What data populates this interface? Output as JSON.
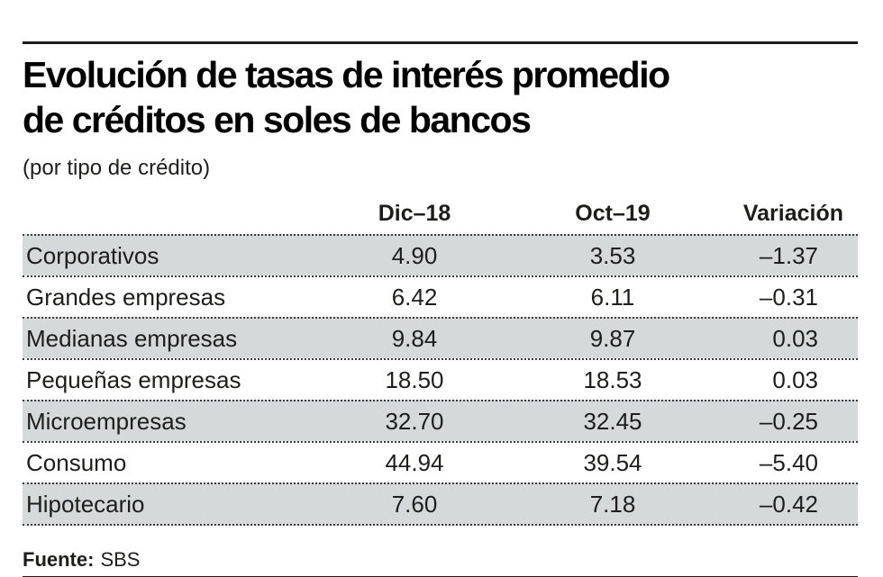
{
  "header": {
    "title_line1": "Evolución de tasas de interés promedio",
    "title_line2": "de créditos en soles de bancos",
    "subtitle": "(por tipo de crédito)"
  },
  "table": {
    "col_dic18": "Dic–18",
    "col_oct19": "Oct–19",
    "col_variacion": "Variación",
    "rows": [
      {
        "label": "Corporativos",
        "dic18": "4.90",
        "oct19": "3.53",
        "variacion": "–1.37"
      },
      {
        "label": "Grandes empresas",
        "dic18": "6.42",
        "oct19": "6.11",
        "variacion": "–0.31"
      },
      {
        "label": "Medianas empresas",
        "dic18": "9.84",
        "oct19": "9.87",
        "variacion": "0.03"
      },
      {
        "label": "Pequeñas empresas",
        "dic18": "18.50",
        "oct19": "18.53",
        "variacion": "0.03"
      },
      {
        "label": "Microempresas",
        "dic18": "32.70",
        "oct19": "32.45",
        "variacion": "–0.25"
      },
      {
        "label": "Consumo",
        "dic18": "44.94",
        "oct19": "39.54",
        "variacion": "–5.40"
      },
      {
        "label": "Hipotecario",
        "dic18": "7.60",
        "oct19": "7.18",
        "variacion": "–0.42"
      }
    ]
  },
  "footer": {
    "source_label": "Fuente:",
    "source_value": "SBS"
  },
  "colors": {
    "row_shade": "#d6d9da",
    "text": "#1d1d1b",
    "rule": "#1d1d1b",
    "dotted_border": "#3c3c3c",
    "background": "#ffffff"
  },
  "chart_data": {
    "type": "table",
    "title": "Evolución de tasas de interés promedio de créditos en soles de bancos",
    "subtitle": "(por tipo de crédito)",
    "columns": [
      "Tipo de crédito",
      "Dic-18",
      "Oct-19",
      "Variación"
    ],
    "rows": [
      [
        "Corporativos",
        4.9,
        3.53,
        -1.37
      ],
      [
        "Grandes empresas",
        6.42,
        6.11,
        -0.31
      ],
      [
        "Medianas empresas",
        9.84,
        9.87,
        0.03
      ],
      [
        "Pequeñas empresas",
        18.5,
        18.53,
        0.03
      ],
      [
        "Microempresas",
        32.7,
        32.45,
        -0.25
      ],
      [
        "Consumo",
        44.94,
        39.54,
        -5.4
      ],
      [
        "Hipotecario",
        7.6,
        7.18,
        -0.42
      ]
    ],
    "source": "SBS",
    "layout": "alternating shaded rows (gray/white), dotted row separators, solid rules top and bottom"
  }
}
